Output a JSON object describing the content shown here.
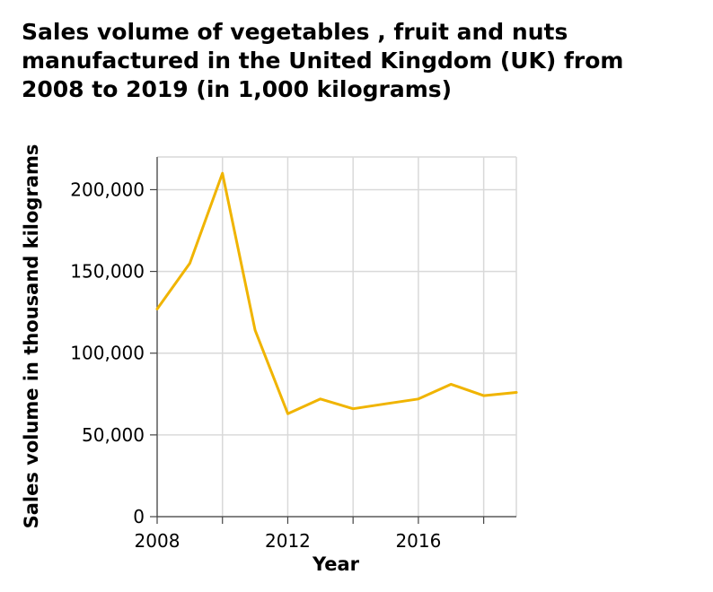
{
  "chart_data": {
    "type": "line",
    "title_lines": [
      "Sales volume of vegetables , fruit and nuts",
      "manufactured in the United Kingdom (UK) from",
      "2008 to 2019 (in 1,000 kilograms)"
    ],
    "xlabel": "Year",
    "ylabel": "Sales volume in thousand kilograms",
    "x": [
      2008,
      2009,
      2010,
      2011,
      2012,
      2013,
      2014,
      2015,
      2016,
      2017,
      2018,
      2019
    ],
    "values": [
      127000,
      155000,
      210000,
      114000,
      63000,
      72000,
      66000,
      69000,
      72000,
      81000,
      74000,
      76000
    ],
    "xlim": [
      2008,
      2019
    ],
    "ylim": [
      0,
      220000
    ],
    "x_ticks": [
      2008,
      2010,
      2012,
      2014,
      2016,
      2018
    ],
    "x_tick_labels": [
      "2008",
      "",
      "2012",
      "",
      "2016",
      ""
    ],
    "y_ticks": [
      0,
      50000,
      100000,
      150000,
      200000
    ],
    "y_tick_labels": [
      "0",
      "50,000",
      "100,000",
      "150,000",
      "200,000"
    ],
    "grid": true,
    "line_color": "#f0b400"
  }
}
